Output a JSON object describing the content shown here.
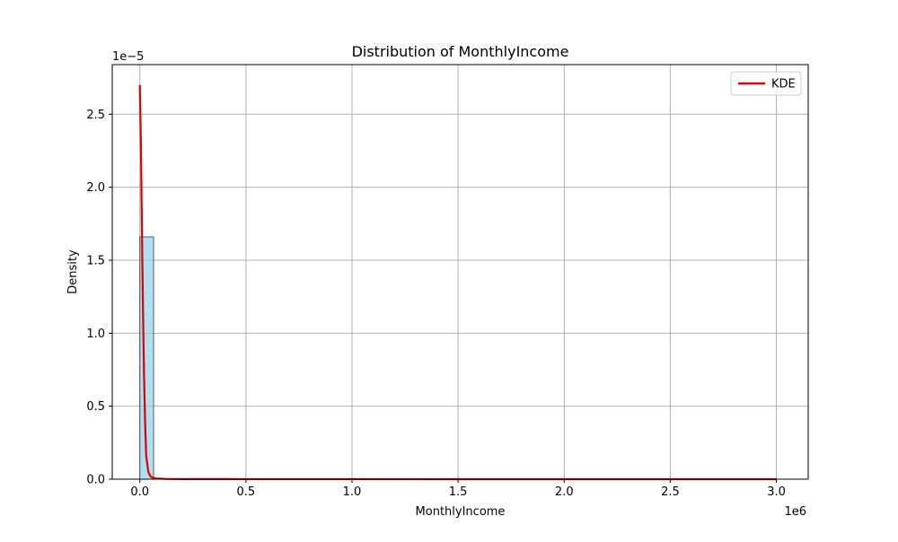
{
  "chart_data": {
    "type": "histogram",
    "title": "Distribution of MonthlyIncome",
    "xlabel": "MonthlyIncome",
    "ylabel": "Density",
    "x_offset_label": "1e6",
    "y_offset_label": "1e−5",
    "x_scale_exponent": 6,
    "y_scale_exponent": -5,
    "xlim": [
      -130000,
      3150000
    ],
    "ylim": [
      0,
      2.84e-05
    ],
    "x_ticks": [
      0,
      500000,
      1000000,
      1500000,
      2000000,
      2500000,
      3000000
    ],
    "x_tick_labels": [
      "0.0",
      "0.5",
      "1.0",
      "1.5",
      "2.0",
      "2.5",
      "3.0"
    ],
    "y_ticks": [
      0,
      5e-06,
      1e-05,
      1.5e-05,
      2e-05,
      2.5e-05
    ],
    "y_tick_labels": [
      "0.0",
      "0.5",
      "1.0",
      "1.5",
      "2.0",
      "2.5"
    ],
    "grid": true,
    "legend_position": "top-right",
    "histogram": {
      "name": "",
      "bin_edges": [
        0,
        65000
      ],
      "densities": [
        1.66e-05
      ],
      "fill_color": "#87ceeb",
      "edge_color": "#000000"
    },
    "kde": {
      "name": "KDE",
      "color": "#e00000",
      "x": [
        0,
        5000,
        10000,
        15000,
        20000,
        25000,
        30000,
        40000,
        50000,
        60000,
        80000,
        120000,
        200000,
        500000,
        1000000,
        1500000,
        2000000,
        2500000,
        3000000
      ],
      "y": [
        2.7e-05,
        2.3e-05,
        1.7e-05,
        1.15e-05,
        7e-06,
        3.8e-06,
        1.6e-06,
        5e-07,
        2e-07,
        1e-07,
        5e-08,
        2e-08,
        1e-08,
        5e-09,
        3e-09,
        2e-09,
        1e-09,
        1e-09,
        1e-09
      ]
    }
  }
}
